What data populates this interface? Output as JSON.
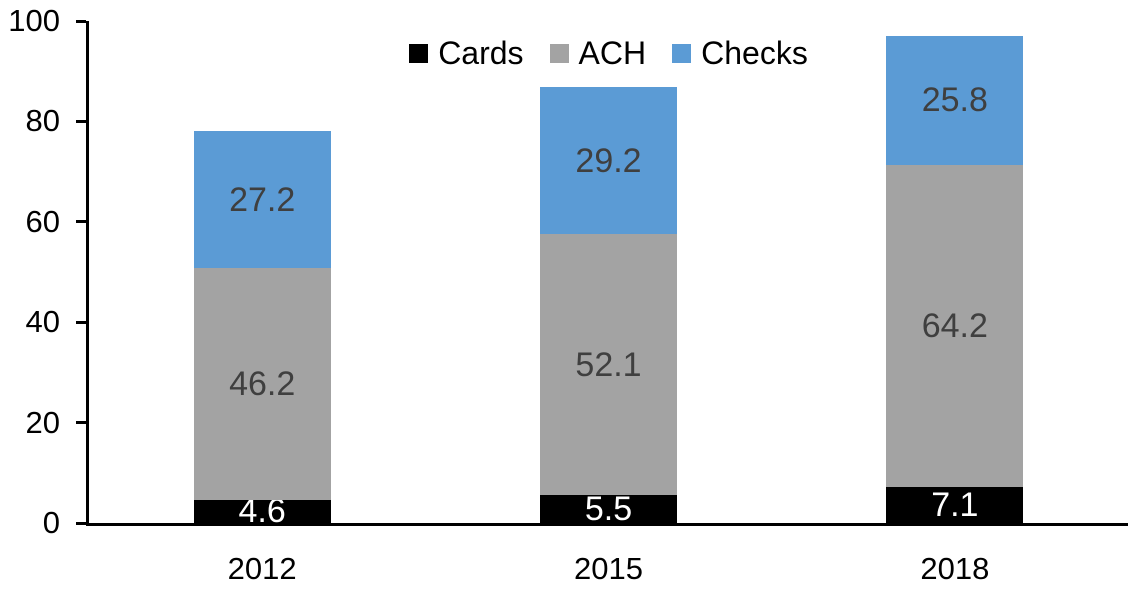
{
  "chart_data": {
    "type": "bar",
    "stacked": true,
    "title": "",
    "xlabel": "",
    "ylabel": "",
    "categories": [
      "2012",
      "2015",
      "2018"
    ],
    "series": [
      {
        "name": "Cards",
        "color": "#000000",
        "label_color": "#ffffff",
        "values": [
          4.6,
          5.5,
          7.1
        ]
      },
      {
        "name": "ACH",
        "color": "#a3a3a3",
        "label_color": "#3f3f3f",
        "values": [
          46.2,
          52.1,
          64.2
        ]
      },
      {
        "name": "Checks",
        "color": "#5b9bd5",
        "label_color": "#3f3f3f",
        "values": [
          27.2,
          29.2,
          25.8
        ]
      }
    ],
    "totals": [
      78.0,
      86.8,
      97.1
    ],
    "ylim": [
      0,
      100
    ],
    "yticks": [
      0,
      20,
      40,
      60,
      80,
      100
    ],
    "grid": false,
    "legend_position": "top-center",
    "axis_color": "#000000",
    "value_label_decimals": 1
  }
}
